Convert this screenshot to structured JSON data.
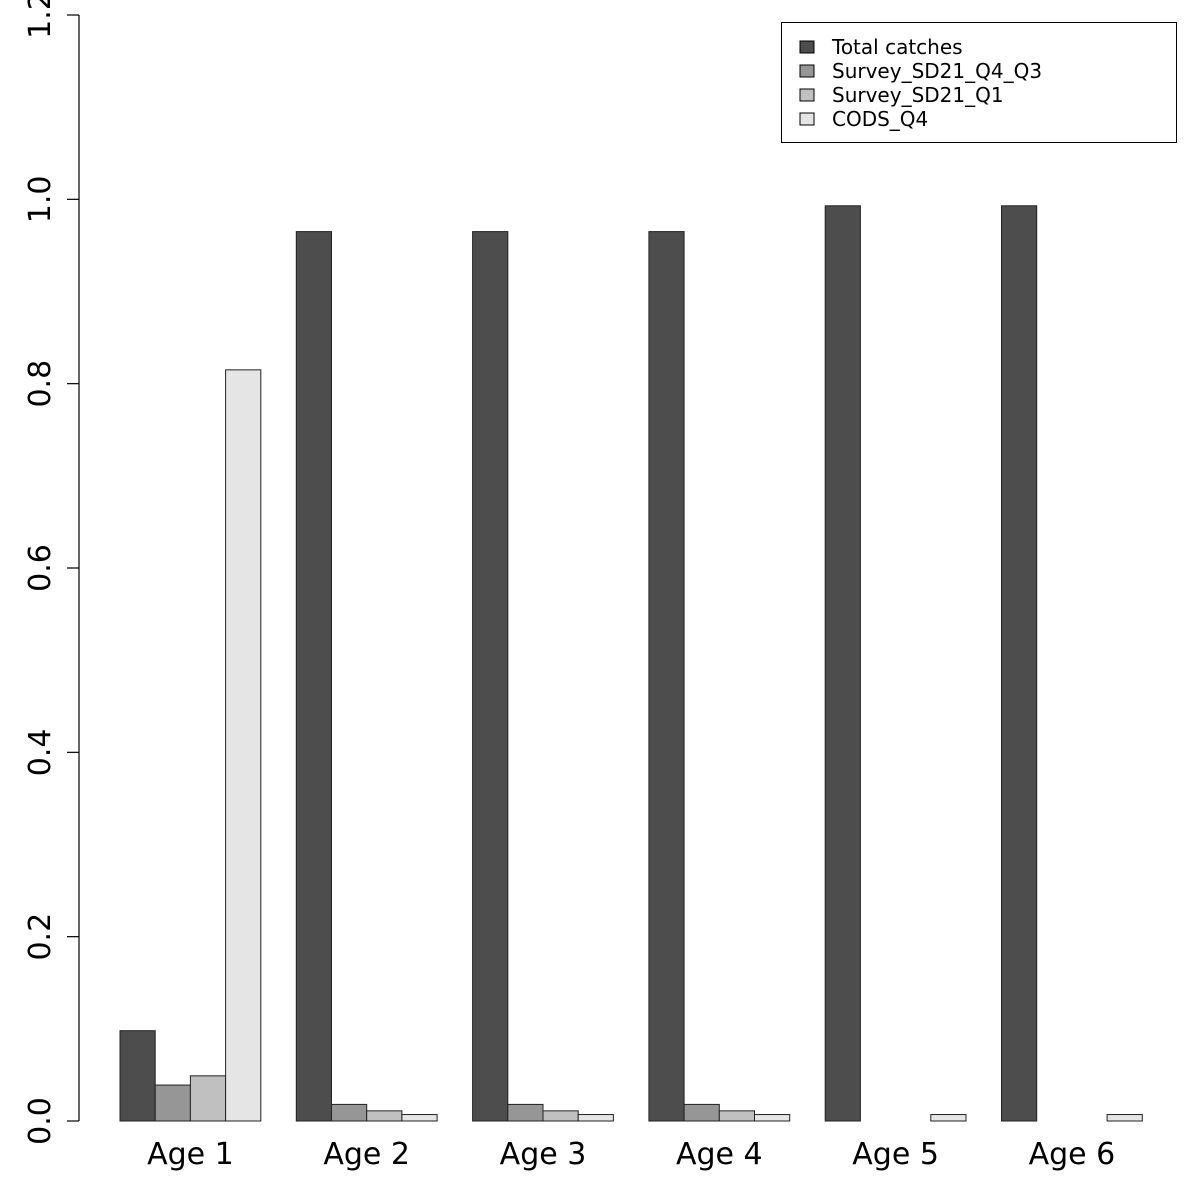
{
  "chart_data": {
    "type": "bar",
    "title": "",
    "xlabel": "",
    "ylabel": "",
    "ylim": [
      0,
      1.2
    ],
    "yticks": [
      "0.0",
      "0.2",
      "0.4",
      "0.6",
      "0.8",
      "1.0",
      "1.2"
    ],
    "categories": [
      "Age 1",
      "Age 2",
      "Age 3",
      "Age 4",
      "Age 5",
      "Age 6"
    ],
    "legend_position": "top-right",
    "grid": false,
    "series": [
      {
        "name": "Total catches",
        "color": "#4d4d4d",
        "values": [
          0.098,
          0.965,
          0.965,
          0.965,
          0.993,
          0.993
        ]
      },
      {
        "name": "Survey_SD21_Q4_Q3",
        "color": "#969696",
        "values": [
          0.039,
          0.018,
          0.018,
          0.018,
          0.0,
          0.0
        ]
      },
      {
        "name": "Survey_SD21_Q1",
        "color": "#c0c0c0",
        "values": [
          0.049,
          0.011,
          0.011,
          0.011,
          0.0,
          0.0
        ]
      },
      {
        "name": "CODS_Q4",
        "color": "#e5e5e5",
        "values": [
          0.815,
          0.007,
          0.007,
          0.007,
          0.007,
          0.007
        ]
      }
    ]
  }
}
